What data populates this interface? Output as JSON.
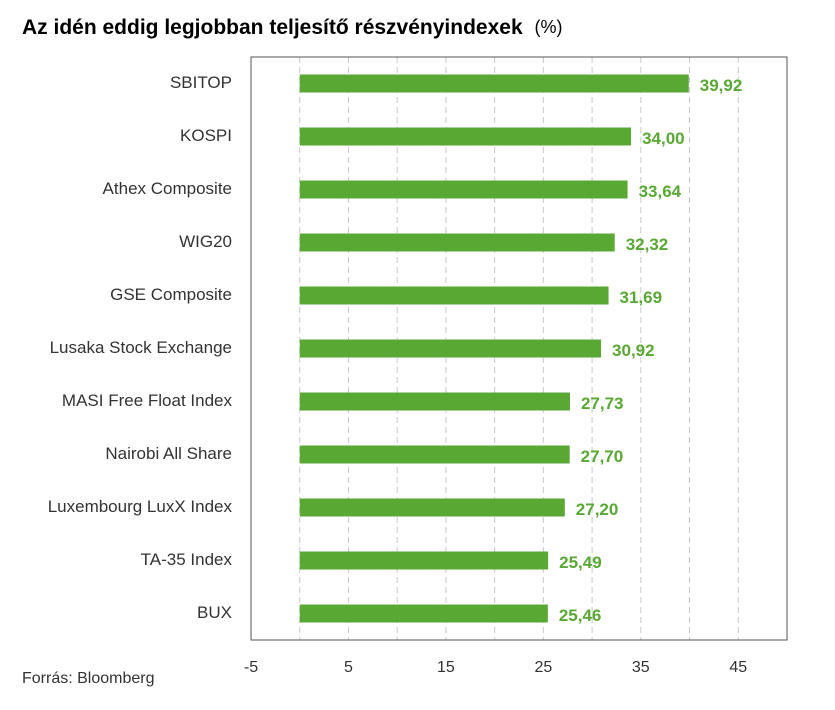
{
  "chart_data": {
    "type": "bar",
    "orientation": "horizontal",
    "title": "Az idén eddig legjobban teljesítő részvényindexek",
    "title_unit": "(%)",
    "source": "Forrás: Bloomberg",
    "categories": [
      "SBITOP",
      "KOSPI",
      "Athex Composite",
      "WIG20",
      "GSE Composite",
      "Lusaka Stock Exchange",
      "MASI Free Float Index",
      "Nairobi All Share",
      "Luxembourg LuxX Index",
      "TA-35 Index",
      "BUX"
    ],
    "values": [
      39.92,
      34.0,
      33.64,
      32.32,
      31.69,
      30.92,
      27.73,
      27.7,
      27.2,
      25.49,
      25.46
    ],
    "value_labels": [
      "39,92",
      "34,00",
      "33,64",
      "32,32",
      "31,69",
      "30,92",
      "27,73",
      "27,70",
      "27,20",
      "25,49",
      "25,46"
    ],
    "color": "#59a834",
    "xlim": [
      -5,
      50
    ],
    "xticks": [
      -5,
      5,
      15,
      25,
      35,
      45
    ],
    "grid": true,
    "grid_step": 5
  }
}
